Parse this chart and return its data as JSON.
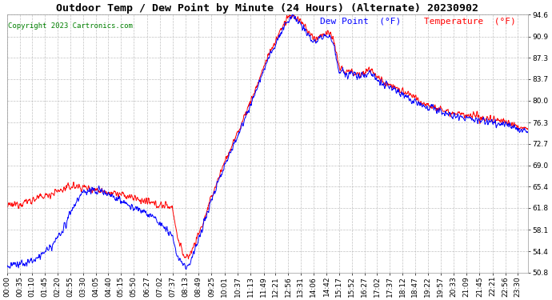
{
  "title": "Outdoor Temp / Dew Point by Minute (24 Hours) (Alternate) 20230902",
  "copyright": "Copyright 2023 Cartronics.com",
  "legend_dew": "Dew Point  (°F)",
  "legend_temp": "Temperature  (°F)",
  "dew_color": "#0000ff",
  "temp_color": "#ff0000",
  "background_color": "#ffffff",
  "grid_color": "#bbbbbb",
  "yticks": [
    50.8,
    54.4,
    58.1,
    61.8,
    65.4,
    69.0,
    72.7,
    76.3,
    80.0,
    83.7,
    87.3,
    90.9,
    94.6
  ],
  "ymin": 50.8,
  "ymax": 94.6,
  "title_fontsize": 9.5,
  "copyright_fontsize": 6.5,
  "legend_fontsize": 8,
  "tick_fontsize": 6.5,
  "line_width": 0.7
}
